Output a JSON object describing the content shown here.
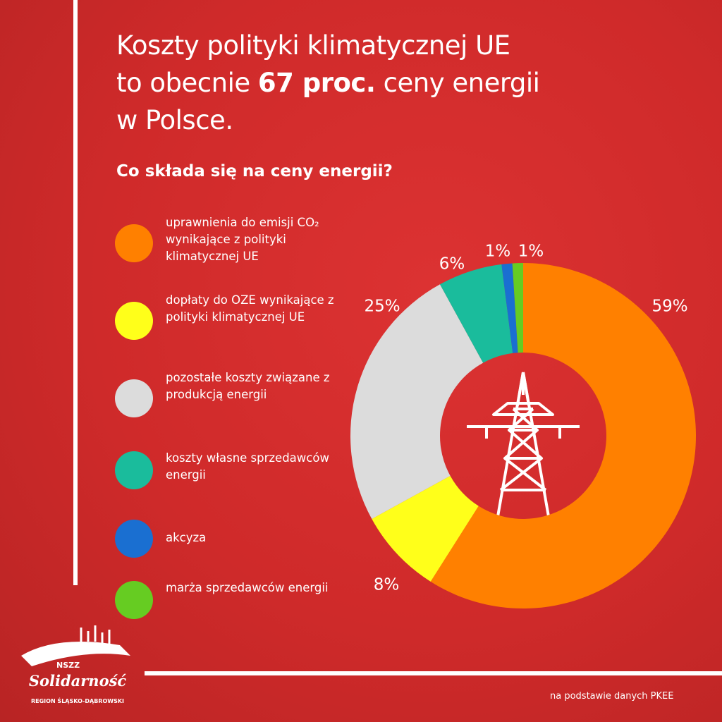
{
  "chart_data": {
    "type": "pie",
    "donut": true,
    "title": [
      "Koszty polityki klimatycznej UE",
      "to obecnie ",
      "67 proc.",
      " ceny energii",
      "w Polsce."
    ],
    "subtitle": "Co składa się na ceny energii?",
    "categories": [
      "uprawnienia do emisji CO₂ wynikające z polityki klimatycznej UE",
      "dopłaty do OZE wynikające z polityki klimatycznej UE",
      "pozostałe koszty związane z produkcją energii",
      "koszty własne sprzedawców energii",
      "akcyza",
      "marża sprzedawców energii"
    ],
    "values": [
      59,
      8,
      25,
      6,
      1,
      1
    ],
    "value_labels": [
      "59%",
      "8%",
      "25%",
      "6%",
      "1%",
      "1%"
    ],
    "colors": [
      "#ff8000",
      "#ffff1a",
      "#dcdcdc",
      "#1abc9c",
      "#1a6fd1",
      "#66cc22"
    ],
    "source": "na podstawie danych PKEE"
  },
  "logo": {
    "top": "NSZZ",
    "name": "Solidarność",
    "region": "REGION ŚLĄSKO-DĄBROWSKI"
  }
}
